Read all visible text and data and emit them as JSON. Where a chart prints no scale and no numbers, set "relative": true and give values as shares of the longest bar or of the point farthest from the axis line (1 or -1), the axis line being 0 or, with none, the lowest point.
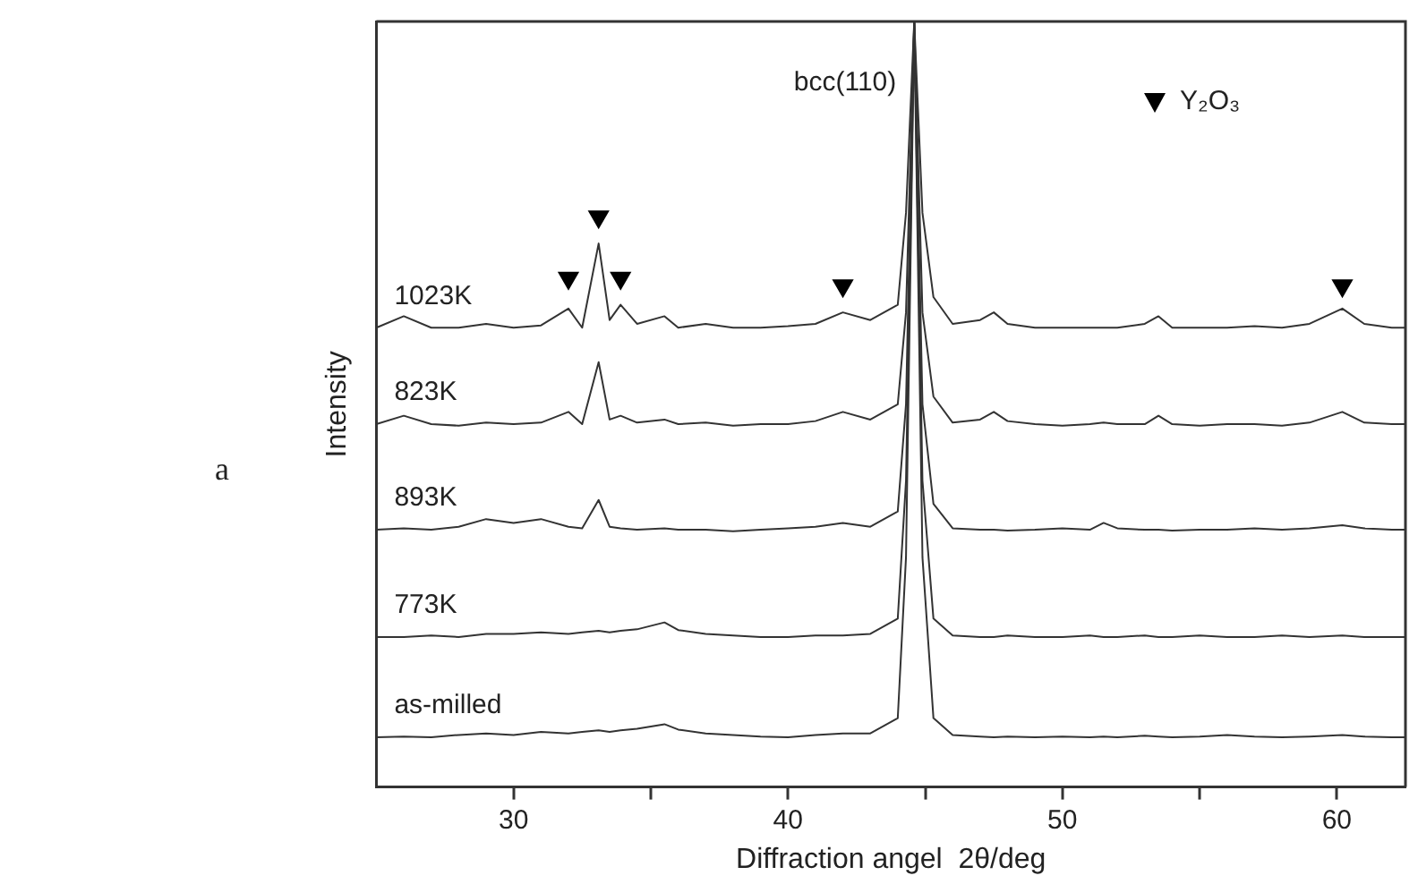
{
  "chart_data": {
    "type": "line",
    "relative": true,
    "xlabel": "Diffraction angel  2θ/deg",
    "ylabel": "Intensity",
    "xlim": [
      25,
      62.5
    ],
    "xticks": [
      30,
      {
        "value": 35,
        "label": null
      },
      40,
      {
        "value": 45,
        "label": null
      },
      50,
      {
        "value": 55,
        "label": null
      },
      60
    ],
    "legend": "top right",
    "line_style": "solid",
    "marker": "none",
    "grid": false,
    "annotations": [
      "a",
      {
        "text": "bcc(110)",
        "x": 44.6,
        "y": 0.92
      }
    ],
    "x": [
      25,
      26,
      27,
      28,
      29,
      30,
      31,
      32,
      32.5,
      33.1,
      33.5,
      33.9,
      34.5,
      35.5,
      36,
      37,
      38,
      39,
      40,
      41,
      42,
      43,
      44,
      44.3,
      44.6,
      44.9,
      45.3,
      46,
      47,
      47.5,
      48,
      49,
      50,
      51,
      51.5,
      52,
      53,
      53.5,
      54,
      55,
      56,
      57,
      58,
      59,
      60.2,
      61,
      62,
      62.5
    ],
    "series": [
      {
        "name": "1023K",
        "color": "#333333",
        "values": [
          0.6,
          0.615,
          0.6,
          0.6,
          0.605,
          0.6,
          0.603,
          0.625,
          0.6,
          0.71,
          0.61,
          0.63,
          0.605,
          0.615,
          0.6,
          0.605,
          0.6,
          0.6,
          0.602,
          0.605,
          0.62,
          0.61,
          0.63,
          0.75,
          1,
          0.75,
          0.64,
          0.605,
          0.61,
          0.62,
          0.605,
          0.6,
          0.6,
          0.6,
          0.6,
          0.6,
          0.605,
          0.615,
          0.6,
          0.6,
          0.6,
          0.602,
          0.6,
          0.605,
          0.625,
          0.605,
          0.6,
          0.6
        ]
      },
      {
        "name": "823K",
        "color": "#333333",
        "values": [
          0.474,
          0.485,
          0.474,
          0.472,
          0.476,
          0.474,
          0.476,
          0.49,
          0.474,
          0.555,
          0.48,
          0.485,
          0.476,
          0.48,
          0.474,
          0.476,
          0.472,
          0.474,
          0.474,
          0.478,
          0.49,
          0.48,
          0.5,
          0.62,
          1,
          0.62,
          0.51,
          0.476,
          0.48,
          0.49,
          0.478,
          0.474,
          0.472,
          0.474,
          0.476,
          0.474,
          0.474,
          0.485,
          0.474,
          0.472,
          0.474,
          0.474,
          0.472,
          0.476,
          0.49,
          0.476,
          0.474,
          0.474
        ]
      },
      {
        "name": "893K",
        "color": "#333333",
        "values": [
          0.336,
          0.338,
          0.336,
          0.34,
          0.35,
          0.345,
          0.35,
          0.34,
          0.338,
          0.375,
          0.34,
          0.338,
          0.336,
          0.338,
          0.336,
          0.336,
          0.334,
          0.336,
          0.338,
          0.34,
          0.345,
          0.34,
          0.36,
          0.5,
          1,
          0.5,
          0.37,
          0.338,
          0.336,
          0.336,
          0.335,
          0.336,
          0.338,
          0.336,
          0.345,
          0.338,
          0.336,
          0.336,
          0.335,
          0.336,
          0.336,
          0.338,
          0.336,
          0.338,
          0.342,
          0.338,
          0.336,
          0.336
        ]
      },
      {
        "name": "773K",
        "color": "#333333",
        "values": [
          0.196,
          0.196,
          0.198,
          0.196,
          0.2,
          0.2,
          0.202,
          0.2,
          0.202,
          0.204,
          0.202,
          0.204,
          0.206,
          0.215,
          0.205,
          0.2,
          0.198,
          0.196,
          0.196,
          0.198,
          0.198,
          0.2,
          0.22,
          0.4,
          1,
          0.4,
          0.22,
          0.198,
          0.196,
          0.196,
          0.198,
          0.196,
          0.196,
          0.198,
          0.196,
          0.196,
          0.198,
          0.196,
          0.196,
          0.198,
          0.196,
          0.196,
          0.198,
          0.196,
          0.198,
          0.196,
          0.196,
          0.196
        ]
      },
      {
        "name": "as-milled",
        "color": "#333333",
        "values": [
          0.065,
          0.066,
          0.065,
          0.068,
          0.07,
          0.068,
          0.072,
          0.07,
          0.072,
          0.074,
          0.072,
          0.074,
          0.076,
          0.082,
          0.075,
          0.07,
          0.068,
          0.066,
          0.065,
          0.068,
          0.07,
          0.07,
          0.09,
          0.3,
          1,
          0.3,
          0.09,
          0.068,
          0.066,
          0.065,
          0.066,
          0.065,
          0.066,
          0.065,
          0.066,
          0.065,
          0.067,
          0.066,
          0.065,
          0.066,
          0.068,
          0.066,
          0.065,
          0.066,
          0.068,
          0.066,
          0.065,
          0.065
        ]
      },
      {
        "name": "Y₂O₃",
        "type": "scatter",
        "marker": "triangle",
        "color": "#000000",
        "x": [
          32.0,
          33.1,
          33.9,
          42.0,
          60.2
        ],
        "values": [
          0.665,
          0.745,
          0.665,
          0.655,
          0.655
        ]
      }
    ]
  }
}
